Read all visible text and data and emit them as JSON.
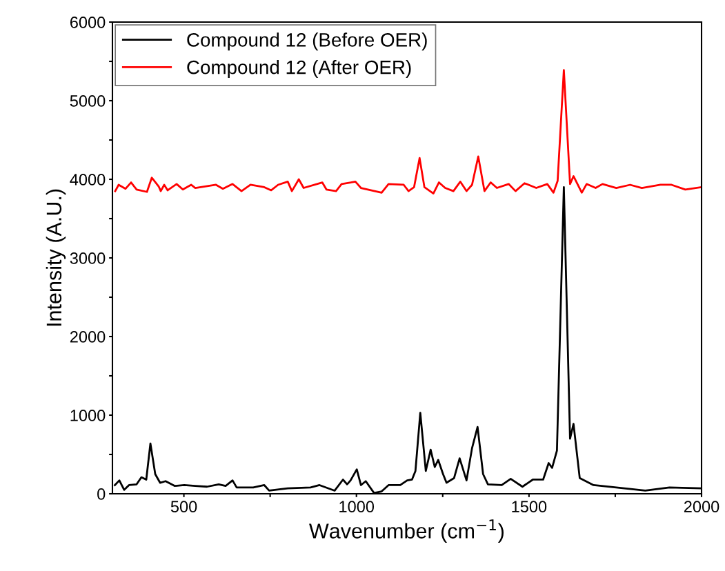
{
  "chart_data": {
    "type": "line",
    "xlabel": "Wavenumber (cm$^{−1}$)",
    "ylabel": "Intensity (A.U.)",
    "xlim": [
      293,
      2000
    ],
    "xticks": [
      500,
      {
        "value": 750,
        "label": null
      },
      1000,
      {
        "value": 1250,
        "label": null
      },
      1500,
      {
        "value": 1750,
        "label": null
      },
      2000
    ],
    "ylim": [
      0,
      6000
    ],
    "yticks": [
      0,
      {
        "value": 500,
        "label": null
      },
      1000,
      {
        "value": 1500,
        "label": null
      },
      2000,
      {
        "value": 2500,
        "label": null
      },
      3000,
      {
        "value": 3500,
        "label": null
      },
      4000,
      {
        "value": 4500,
        "label": null
      },
      5000,
      {
        "value": 5500,
        "label": null
      },
      6000
    ],
    "grid": false,
    "legend": "top left",
    "marker": "none",
    "line_style": "solid",
    "series": [
      {
        "name": "Compound 12 (Before OER)",
        "color": "#000000",
        "x": [
          300,
          313,
          327,
          341,
          363,
          377,
          391,
          403,
          417,
          431,
          447,
          473,
          501,
          533,
          567,
          601,
          621,
          641,
          653,
          701,
          733,
          747,
          801,
          867,
          893,
          937,
          961,
          973,
          983,
          1001,
          1013,
          1027,
          1051,
          1073,
          1093,
          1127,
          1147,
          1161,
          1171,
          1185,
          1201,
          1215,
          1227,
          1237,
          1251,
          1261,
          1283,
          1299,
          1319,
          1335,
          1351,
          1367,
          1381,
          1421,
          1447,
          1481,
          1511,
          1541,
          1557,
          1567,
          1581,
          1601,
          1619,
          1629,
          1647,
          1687,
          1753,
          1837,
          1907,
          2000
        ],
        "values": [
          110,
          170,
          50,
          110,
          120,
          210,
          180,
          640,
          250,
          140,
          160,
          100,
          110,
          100,
          90,
          120,
          100,
          170,
          80,
          80,
          110,
          40,
          70,
          80,
          110,
          40,
          180,
          120,
          170,
          310,
          110,
          160,
          10,
          30,
          110,
          110,
          170,
          180,
          290,
          1030,
          290,
          560,
          340,
          430,
          250,
          140,
          200,
          450,
          170,
          580,
          850,
          250,
          120,
          110,
          190,
          90,
          180,
          180,
          390,
          330,
          550,
          3900,
          700,
          890,
          200,
          110,
          80,
          40,
          80,
          70
        ]
      },
      {
        "name": "Compound 12 (After OER)",
        "color": "#ff0000",
        "x": [
          301,
          311,
          331,
          347,
          363,
          393,
          407,
          427,
          433,
          443,
          453,
          479,
          497,
          521,
          533,
          593,
          613,
          641,
          667,
          693,
          733,
          753,
          773,
          801,
          813,
          833,
          847,
          901,
          913,
          941,
          957,
          997,
          1013,
          1073,
          1093,
          1137,
          1151,
          1167,
          1183,
          1197,
          1223,
          1239,
          1257,
          1281,
          1301,
          1319,
          1335,
          1353,
          1371,
          1389,
          1407,
          1441,
          1461,
          1487,
          1521,
          1553,
          1571,
          1583,
          1601,
          1619,
          1629,
          1653,
          1667,
          1693,
          1713,
          1753,
          1793,
          1827,
          1881,
          1913,
          1953,
          2000
        ],
        "values": [
          3850,
          3930,
          3880,
          3960,
          3870,
          3840,
          4020,
          3910,
          3850,
          3930,
          3860,
          3940,
          3870,
          3930,
          3890,
          3930,
          3880,
          3940,
          3850,
          3930,
          3900,
          3860,
          3930,
          3970,
          3850,
          4000,
          3890,
          3960,
          3870,
          3850,
          3940,
          3970,
          3890,
          3830,
          3940,
          3930,
          3850,
          3900,
          4270,
          3900,
          3820,
          3960,
          3890,
          3850,
          3970,
          3850,
          3930,
          4290,
          3850,
          3960,
          3890,
          3940,
          3850,
          3950,
          3890,
          3940,
          3830,
          3980,
          5390,
          3940,
          4040,
          3830,
          3940,
          3890,
          3940,
          3890,
          3930,
          3890,
          3930,
          3930,
          3870,
          3900
        ]
      }
    ]
  }
}
